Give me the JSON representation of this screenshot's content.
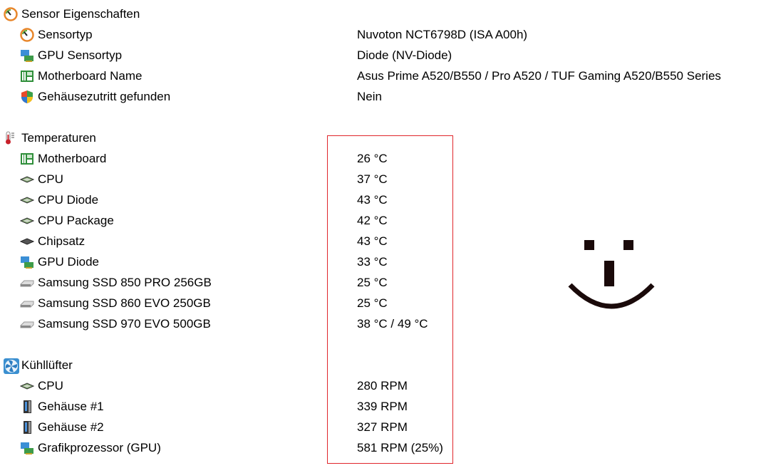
{
  "sections": [
    {
      "label": "Sensor Eigenschaften",
      "icon": "gauge-icon",
      "items": [
        {
          "label": "Sensortyp",
          "value": "Nuvoton NCT6798D  (ISA A00h)",
          "icon": "gauge-icon"
        },
        {
          "label": "GPU Sensortyp",
          "value": "Diode  (NV-Diode)",
          "icon": "gpu-icon"
        },
        {
          "label": "Motherboard Name",
          "value": "Asus Prime A520/B550 / Pro A520 / TUF Gaming A520/B550 Series",
          "icon": "motherboard-icon"
        },
        {
          "label": "Gehäusezutritt gefunden",
          "value": "Nein",
          "icon": "shield-icon"
        }
      ]
    },
    {
      "label": "Temperaturen",
      "icon": "thermometer-icon",
      "items": [
        {
          "label": "Motherboard",
          "value": "26 °C",
          "icon": "motherboard-icon"
        },
        {
          "label": "CPU",
          "value": "37 °C",
          "icon": "cpu-icon"
        },
        {
          "label": "CPU Diode",
          "value": "43 °C",
          "icon": "cpu-icon"
        },
        {
          "label": "CPU Package",
          "value": "42 °C",
          "icon": "cpu-icon"
        },
        {
          "label": "Chipsatz",
          "value": "43 °C",
          "icon": "chip-icon"
        },
        {
          "label": "GPU Diode",
          "value": "33 °C",
          "icon": "gpu-icon"
        },
        {
          "label": "Samsung SSD 850 PRO 256GB",
          "value": "25 °C",
          "icon": "drive-icon"
        },
        {
          "label": "Samsung SSD 860 EVO 250GB",
          "value": "25 °C",
          "icon": "drive-icon"
        },
        {
          "label": "Samsung SSD 970 EVO 500GB",
          "value": "38 °C / 49 °C",
          "icon": "drive-icon"
        }
      ]
    },
    {
      "label": "Kühllüfter",
      "icon": "fan-icon",
      "items": [
        {
          "label": "CPU",
          "value": "280 RPM",
          "icon": "cpu-icon"
        },
        {
          "label": "Gehäuse #1",
          "value": "339 RPM",
          "icon": "case-icon"
        },
        {
          "label": "Gehäuse #2",
          "value": "327 RPM",
          "icon": "case-icon"
        },
        {
          "label": "Grafikprozessor (GPU)",
          "value": "581 RPM  (25%)",
          "icon": "gpu-icon"
        }
      ]
    }
  ],
  "colors": {
    "highlight_box": "#e0262b"
  }
}
